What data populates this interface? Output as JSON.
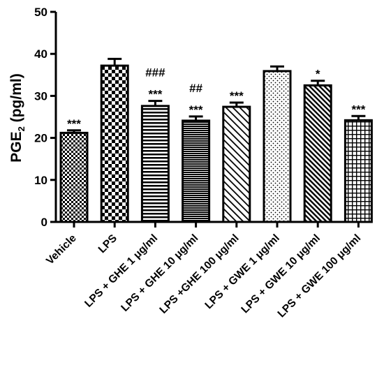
{
  "chart_data": {
    "type": "bar",
    "title": "",
    "ylabel_main": "PGE",
    "ylabel_sub": "2",
    "ylabel_unit": " (pg/ml)",
    "ylim": [
      0,
      50
    ],
    "yticks": [
      "0",
      "10",
      "20",
      "30",
      "40",
      "50"
    ],
    "categories": [
      "Vehicle",
      "LPS",
      "LPS + GHE 1 μg/ml",
      "LPS + GHE 10 μg/ml",
      "LPS +GHE 100 μg/ml",
      "LPS + GWE 1 μg/ml",
      "LPS + GWE 10 μg/ml",
      "LPS + GWE 100 μg/ml"
    ],
    "values": [
      21.2,
      37.2,
      27.6,
      24.1,
      27.4,
      35.9,
      32.5,
      24.2
    ],
    "errors": [
      0.6,
      1.6,
      1.2,
      1.0,
      1.0,
      1.1,
      1.1,
      1.0
    ],
    "annotations": [
      [
        "***"
      ],
      [],
      [
        "***",
        "###"
      ],
      [
        "***",
        "##"
      ],
      [
        "***"
      ],
      [],
      [
        "*"
      ],
      [
        "***"
      ]
    ],
    "patterns": [
      "checker-fine",
      "checker-coarse",
      "horizontal",
      "horizontal-dense",
      "diagonal-right",
      "dots",
      "diagonal-dense",
      "grid"
    ],
    "grid": false,
    "legend": "none"
  }
}
